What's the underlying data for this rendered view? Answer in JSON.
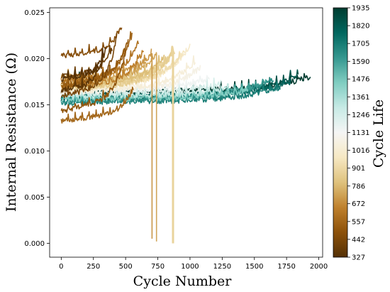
{
  "chart_data": {
    "type": "line",
    "title": "",
    "xlabel": "Cycle Number",
    "ylabel": "Internal Resistance (Ω)",
    "xlim": [
      -90,
      2030
    ],
    "ylim": [
      -0.0015,
      0.0255
    ],
    "xticks": [
      0,
      250,
      500,
      750,
      1000,
      1250,
      1500,
      1750,
      2000
    ],
    "yticks": [
      0.0,
      0.005,
      0.01,
      0.015,
      0.02,
      0.025
    ],
    "xtick_labels": [
      "0",
      "250",
      "500",
      "750",
      "1000",
      "1250",
      "1500",
      "1750",
      "2000"
    ],
    "ytick_labels": [
      "0.000",
      "0.005",
      "0.010",
      "0.015",
      "0.020",
      "0.025"
    ],
    "grid": false,
    "colorbar": {
      "label": "Cycle Life",
      "colormap": "BrBG",
      "range": [
        327,
        1935
      ],
      "ticks": [
        327,
        442,
        557,
        672,
        786,
        901,
        1016,
        1131,
        1246,
        1361,
        1476,
        1590,
        1705,
        1820,
        1935
      ]
    },
    "series": [
      {
        "cycle_life": 327,
        "r_start": 0.0178,
        "r_end": 0.0205,
        "spikes": []
      },
      {
        "cycle_life": 350,
        "r_start": 0.0165,
        "r_end": 0.0213,
        "spikes": []
      },
      {
        "cycle_life": 395,
        "r_start": 0.0181,
        "r_end": 0.0211,
        "spikes": []
      },
      {
        "cycle_life": 430,
        "r_start": 0.0159,
        "r_end": 0.0222,
        "spikes": []
      },
      {
        "cycle_life": 470,
        "r_start": 0.0203,
        "r_end": 0.0236,
        "spikes": []
      },
      {
        "cycle_life": 500,
        "r_start": 0.0143,
        "r_end": 0.0207,
        "spikes": []
      },
      {
        "cycle_life": 520,
        "r_start": 0.017,
        "r_end": 0.022,
        "spikes": []
      },
      {
        "cycle_life": 550,
        "r_start": 0.0172,
        "r_end": 0.0226,
        "spikes": []
      },
      {
        "cycle_life": 560,
        "r_start": 0.0133,
        "r_end": 0.0168,
        "spikes": []
      },
      {
        "cycle_life": 600,
        "r_start": 0.0176,
        "r_end": 0.0217,
        "spikes": []
      },
      {
        "cycle_life": 640,
        "r_start": 0.0168,
        "r_end": 0.021,
        "spikes": []
      },
      {
        "cycle_life": 700,
        "r_start": 0.018,
        "r_end": 0.0205,
        "spikes": [
          [
            705,
            0.0005
          ]
        ]
      },
      {
        "cycle_life": 740,
        "r_start": 0.0175,
        "r_end": 0.0206,
        "spikes": [
          [
            740,
            0.0002
          ]
        ]
      },
      {
        "cycle_life": 800,
        "r_start": 0.017,
        "r_end": 0.0203,
        "spikes": []
      },
      {
        "cycle_life": 850,
        "r_start": 0.0166,
        "r_end": 0.0204,
        "spikes": []
      },
      {
        "cycle_life": 880,
        "r_start": 0.0172,
        "r_end": 0.0208,
        "spikes": [
          [
            868,
            0.0
          ]
        ]
      },
      {
        "cycle_life": 920,
        "r_start": 0.0169,
        "r_end": 0.0202,
        "spikes": []
      },
      {
        "cycle_life": 960,
        "r_start": 0.0167,
        "r_end": 0.0209,
        "spikes": []
      },
      {
        "cycle_life": 1000,
        "r_start": 0.0166,
        "r_end": 0.0214,
        "spikes": []
      },
      {
        "cycle_life": 1040,
        "r_start": 0.0164,
        "r_end": 0.0196,
        "spikes": []
      },
      {
        "cycle_life": 1080,
        "r_start": 0.0163,
        "r_end": 0.019,
        "spikes": []
      },
      {
        "cycle_life": 1150,
        "r_start": 0.0165,
        "r_end": 0.0178,
        "spikes": []
      },
      {
        "cycle_life": 1240,
        "r_start": 0.0162,
        "r_end": 0.0173,
        "spikes": []
      },
      {
        "cycle_life": 1300,
        "r_start": 0.0159,
        "r_end": 0.0168,
        "spikes": []
      },
      {
        "cycle_life": 1450,
        "r_start": 0.0156,
        "r_end": 0.0166,
        "spikes": []
      },
      {
        "cycle_life": 1600,
        "r_start": 0.0157,
        "r_end": 0.0175,
        "spikes": []
      },
      {
        "cycle_life": 1650,
        "r_start": 0.0153,
        "r_end": 0.0177,
        "spikes": []
      },
      {
        "cycle_life": 1700,
        "r_start": 0.0152,
        "r_end": 0.0169,
        "spikes": []
      },
      {
        "cycle_life": 1780,
        "r_start": 0.0159,
        "r_end": 0.0173,
        "spikes": []
      },
      {
        "cycle_life": 1840,
        "r_start": 0.0156,
        "r_end": 0.0183,
        "spikes": []
      },
      {
        "cycle_life": 1935,
        "r_start": 0.0163,
        "r_end": 0.018,
        "spikes": [
          [
            140,
            0.0186
          ],
          [
            350,
            0.0183
          ],
          [
            480,
            0.0178
          ]
        ]
      }
    ]
  }
}
